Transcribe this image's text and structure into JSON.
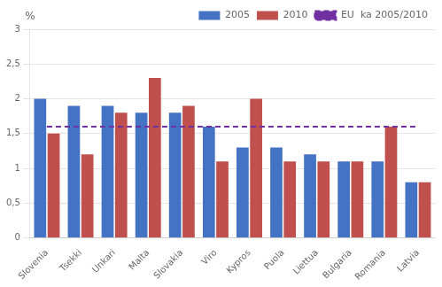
{
  "chart_data": {
    "type": "bar",
    "categories": [
      "Slovenia",
      "Tsekki",
      "Unkari",
      "Malta",
      "Slovakia",
      "Viro",
      "Kypros",
      "Puola",
      "Liettua",
      "Bulgaria",
      "Romania",
      "Latvia"
    ],
    "series": [
      {
        "name": "2005",
        "color": "#4472C4",
        "values": [
          2.0,
          1.9,
          1.9,
          1.8,
          1.8,
          1.6,
          1.3,
          1.3,
          1.2,
          1.1,
          1.1,
          0.8
        ]
      },
      {
        "name": "2010",
        "color": "#C0504D",
        "values": [
          1.5,
          1.2,
          1.8,
          2.3,
          1.9,
          1.1,
          2.0,
          1.1,
          1.1,
          1.1,
          1.6,
          0.8
        ]
      },
      {
        "name": "EU  ka 2005/2010",
        "type": "line",
        "line_style": "dashed",
        "color": "#7030A0",
        "values": [
          1.6,
          1.6,
          1.6,
          1.6,
          1.6,
          1.6,
          1.6,
          1.6,
          1.6,
          1.6,
          1.6,
          1.6
        ]
      }
    ],
    "ylabel": "%",
    "ylim": [
      0,
      3
    ],
    "yticks": [
      0,
      {
        "value": 0.5,
        "label": "0,5"
      },
      1,
      {
        "value": 1.5,
        "label": "1,5"
      },
      2,
      {
        "value": 2.5,
        "label": "2,5"
      },
      3
    ],
    "grid": true,
    "legend": "upper right"
  }
}
